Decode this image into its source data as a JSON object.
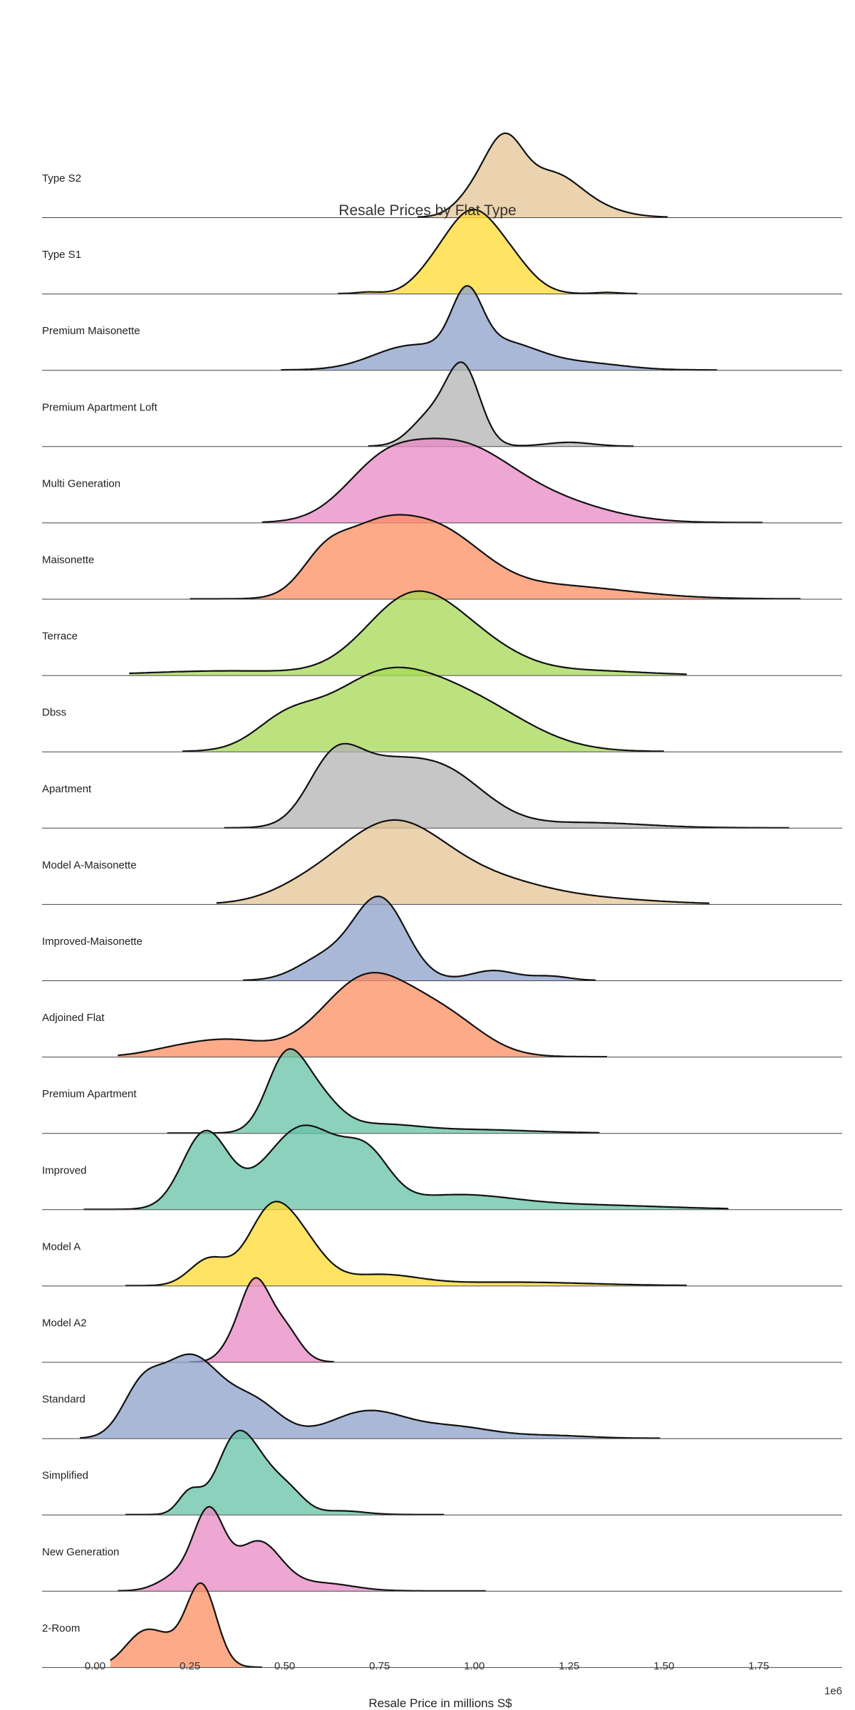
{
  "chart_data": {
    "type": "area",
    "subtype": "ridgeline",
    "title": "Resale Prices by Flat Type",
    "xlabel": "Resale Price in millions S$",
    "x_offset_label": "1e6",
    "xlim": [
      -0.14,
      1.97
    ],
    "xticks": [
      0.0,
      0.25,
      0.5,
      0.75,
      1.0,
      1.25,
      1.5,
      1.75
    ],
    "xtick_labels": [
      "0.00",
      "0.25",
      "0.50",
      "0.75",
      "1.00",
      "1.25",
      "1.50",
      "1.75"
    ],
    "grid": false,
    "series": [
      {
        "name": "Type S2",
        "color": "#e5c494",
        "range": [
          0.85,
          1.51
        ],
        "peaks": [
          [
            1.08,
            1.0,
            0.05
          ],
          [
            1.2,
            0.55,
            0.07
          ],
          [
            1.0,
            0.3,
            0.05
          ],
          [
            1.3,
            0.15,
            0.08
          ]
        ]
      },
      {
        "name": "Type S1",
        "color": "#ffd92f",
        "range": [
          0.64,
          1.43
        ],
        "peaks": [
          [
            0.99,
            1.0,
            0.07
          ],
          [
            1.1,
            0.3,
            0.06
          ],
          [
            0.88,
            0.15,
            0.05
          ],
          [
            0.72,
            0.02,
            0.03
          ],
          [
            1.35,
            0.015,
            0.03
          ]
        ]
      },
      {
        "name": "Premium Maisonette",
        "color": "#8da0cb",
        "range": [
          0.49,
          1.64
        ],
        "peaks": [
          [
            0.83,
            0.38,
            0.1
          ],
          [
            1.07,
            0.45,
            0.1
          ],
          [
            0.98,
            0.95,
            0.04
          ],
          [
            1.3,
            0.1,
            0.1
          ]
        ]
      },
      {
        "name": "Premium Apartment Loft",
        "color": "#b3b3b3",
        "range": [
          0.72,
          1.42
        ],
        "peaks": [
          [
            0.97,
            1.0,
            0.045
          ],
          [
            0.88,
            0.35,
            0.05
          ],
          [
            1.25,
            0.05,
            0.06
          ]
        ]
      },
      {
        "name": "Multi Generation",
        "color": "#e78ac3",
        "range": [
          0.44,
          1.76
        ],
        "peaks": [
          [
            0.95,
            0.75,
            0.14
          ],
          [
            0.75,
            0.45,
            0.1
          ],
          [
            1.2,
            0.2,
            0.15
          ]
        ]
      },
      {
        "name": "Maisonette",
        "color": "#fc8d62",
        "range": [
          0.25,
          1.86
        ],
        "peaks": [
          [
            0.72,
            0.6,
            0.1
          ],
          [
            0.9,
            0.7,
            0.12
          ],
          [
            0.6,
            0.3,
            0.06
          ],
          [
            1.2,
            0.15,
            0.2
          ]
        ]
      },
      {
        "name": "Terrace",
        "color": "#a6d854",
        "range": [
          0.09,
          1.56
        ],
        "peaks": [
          [
            0.83,
            0.85,
            0.12
          ],
          [
            1.0,
            0.3,
            0.12
          ],
          [
            0.35,
            0.05,
            0.2
          ],
          [
            1.3,
            0.05,
            0.15
          ]
        ]
      },
      {
        "name": "Dbss",
        "color": "#a6d854",
        "range": [
          0.23,
          1.5
        ],
        "peaks": [
          [
            0.75,
            0.6,
            0.15
          ],
          [
            1.0,
            0.35,
            0.15
          ],
          [
            0.5,
            0.2,
            0.08
          ]
        ]
      },
      {
        "name": "Apartment",
        "color": "#b3b3b3",
        "range": [
          0.34,
          1.83
        ],
        "peaks": [
          [
            0.63,
            0.65,
            0.07
          ],
          [
            0.9,
            0.6,
            0.12
          ],
          [
            0.75,
            0.3,
            0.08
          ],
          [
            1.3,
            0.05,
            0.15
          ]
        ]
      },
      {
        "name": "Model A-Maisonette",
        "color": "#e5c494",
        "range": [
          0.32,
          1.62
        ],
        "peaks": [
          [
            0.78,
            0.75,
            0.14
          ],
          [
            1.05,
            0.2,
            0.15
          ],
          [
            0.55,
            0.1,
            0.1
          ],
          [
            1.35,
            0.04,
            0.15
          ]
        ]
      },
      {
        "name": "Improved-Maisonette",
        "color": "#8da0cb",
        "range": [
          0.39,
          1.32
        ],
        "peaks": [
          [
            0.75,
            1.0,
            0.07
          ],
          [
            0.6,
            0.25,
            0.07
          ],
          [
            1.05,
            0.12,
            0.06
          ],
          [
            1.2,
            0.05,
            0.05
          ]
        ]
      },
      {
        "name": "Adjoined Flat",
        "color": "#fc8d62",
        "range": [
          0.06,
          1.35
        ],
        "peaks": [
          [
            0.72,
            0.75,
            0.12
          ],
          [
            0.93,
            0.3,
            0.1
          ],
          [
            0.35,
            0.15,
            0.1
          ],
          [
            0.2,
            0.05,
            0.08
          ]
        ]
      },
      {
        "name": "Premium Apartment",
        "color": "#66c2a5",
        "range": [
          0.19,
          1.33
        ],
        "peaks": [
          [
            0.5,
            1.0,
            0.05
          ],
          [
            0.58,
            0.55,
            0.06
          ],
          [
            0.75,
            0.12,
            0.1
          ],
          [
            1.0,
            0.05,
            0.15
          ]
        ]
      },
      {
        "name": "Improved",
        "color": "#66c2a5",
        "range": [
          -0.03,
          1.67
        ],
        "peaks": [
          [
            0.29,
            0.55,
            0.06
          ],
          [
            0.55,
            0.6,
            0.1
          ],
          [
            0.72,
            0.3,
            0.06
          ],
          [
            0.95,
            0.1,
            0.15
          ],
          [
            1.3,
            0.03,
            0.2
          ]
        ]
      },
      {
        "name": "Model A",
        "color": "#ffd92f",
        "range": [
          0.08,
          1.56
        ],
        "peaks": [
          [
            0.46,
            0.8,
            0.06
          ],
          [
            0.55,
            0.4,
            0.06
          ],
          [
            0.3,
            0.3,
            0.05
          ],
          [
            0.75,
            0.12,
            0.1
          ],
          [
            1.1,
            0.04,
            0.2
          ]
        ]
      },
      {
        "name": "Model A2",
        "color": "#e78ac3",
        "range": [
          0.25,
          0.63
        ],
        "peaks": [
          [
            0.42,
            1.0,
            0.04
          ],
          [
            0.5,
            0.4,
            0.04
          ],
          [
            0.35,
            0.1,
            0.03
          ]
        ]
      },
      {
        "name": "Standard",
        "color": "#8da0cb",
        "range": [
          -0.04,
          1.49
        ],
        "peaks": [
          [
            0.25,
            0.6,
            0.08
          ],
          [
            0.12,
            0.3,
            0.05
          ],
          [
            0.42,
            0.25,
            0.07
          ],
          [
            0.72,
            0.2,
            0.1
          ],
          [
            0.95,
            0.08,
            0.1
          ],
          [
            1.2,
            0.02,
            0.1
          ]
        ]
      },
      {
        "name": "Simplified",
        "color": "#66c2a5",
        "range": [
          0.08,
          0.92
        ],
        "peaks": [
          [
            0.37,
            1.0,
            0.05
          ],
          [
            0.45,
            0.45,
            0.05
          ],
          [
            0.25,
            0.3,
            0.03
          ],
          [
            0.52,
            0.2,
            0.04
          ],
          [
            0.65,
            0.05,
            0.06
          ]
        ]
      },
      {
        "name": "New Generation",
        "color": "#e78ac3",
        "range": [
          0.06,
          1.03
        ],
        "peaks": [
          [
            0.3,
            1.0,
            0.04
          ],
          [
            0.43,
            0.65,
            0.06
          ],
          [
            0.22,
            0.2,
            0.05
          ],
          [
            0.6,
            0.1,
            0.08
          ]
        ]
      },
      {
        "name": "2-Room",
        "color": "#fc8d62",
        "range": [
          0.04,
          0.44
        ],
        "peaks": [
          [
            0.28,
            1.0,
            0.04
          ],
          [
            0.13,
            0.42,
            0.05
          ],
          [
            0.2,
            0.15,
            0.04
          ]
        ]
      }
    ]
  }
}
